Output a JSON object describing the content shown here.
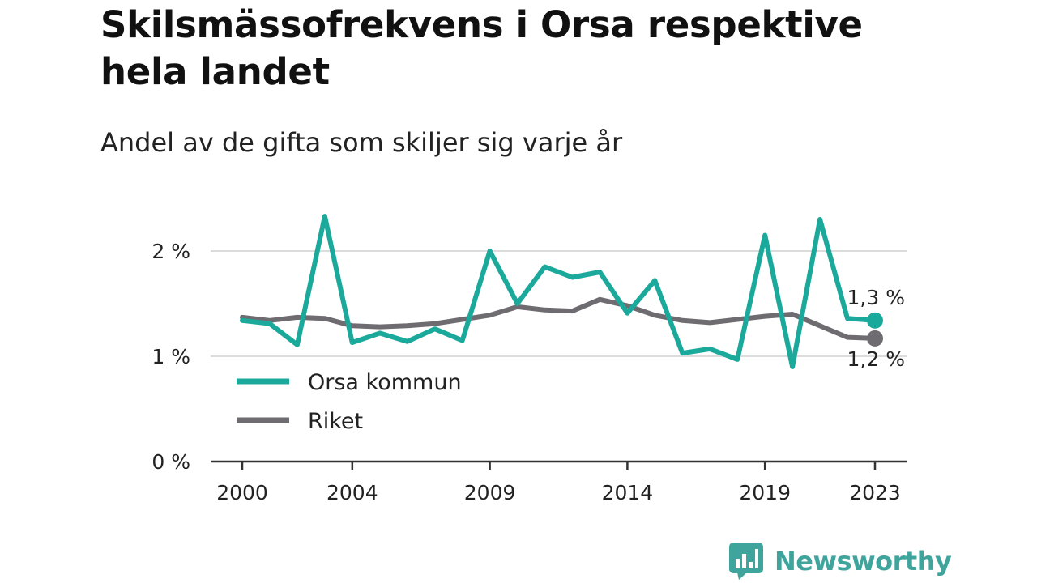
{
  "header": {
    "title": "Skilsmässofrekvens i Orsa respektive hela landet",
    "subtitle": "Andel av de gifta som skiljer sig varje år"
  },
  "brand": {
    "name": "Newsworthy",
    "color": "#3fa59c"
  },
  "chart_data": {
    "type": "line",
    "title": "Skilsmässofrekvens i Orsa respektive hela landet",
    "subtitle": "Andel av de gifta som skiljer sig varje år",
    "x": [
      2000,
      2001,
      2002,
      2003,
      2004,
      2005,
      2006,
      2007,
      2008,
      2009,
      2010,
      2011,
      2012,
      2013,
      2014,
      2015,
      2016,
      2017,
      2018,
      2019,
      2020,
      2021,
      2022,
      2023
    ],
    "x_ticks": [
      2000,
      2004,
      2009,
      2014,
      2019,
      2023
    ],
    "x_tick_labels": [
      "2000",
      "2004",
      "2009",
      "2014",
      "2019",
      "2023"
    ],
    "y_ticks": [
      0,
      1,
      2
    ],
    "y_tick_labels": [
      "0 %",
      "1 %",
      "2 %"
    ],
    "ylim": [
      0,
      2.5
    ],
    "grid": true,
    "legend_position": "bottom-left",
    "series": [
      {
        "name": "Orsa kommun",
        "color": "#1aa99b",
        "values": [
          1.34,
          1.31,
          1.11,
          2.33,
          1.13,
          1.22,
          1.14,
          1.26,
          1.15,
          2.0,
          1.5,
          1.85,
          1.75,
          1.8,
          1.41,
          1.72,
          1.03,
          1.07,
          0.97,
          2.15,
          0.9,
          2.3,
          1.36,
          1.34
        ],
        "end_label": "1,3 %"
      },
      {
        "name": "Riket",
        "color": "#6e6c70",
        "values": [
          1.37,
          1.34,
          1.37,
          1.36,
          1.29,
          1.28,
          1.29,
          1.31,
          1.35,
          1.39,
          1.47,
          1.44,
          1.43,
          1.54,
          1.48,
          1.39,
          1.34,
          1.32,
          1.35,
          1.38,
          1.4,
          1.29,
          1.18,
          1.17
        ],
        "end_label": "1,2 %"
      }
    ]
  }
}
